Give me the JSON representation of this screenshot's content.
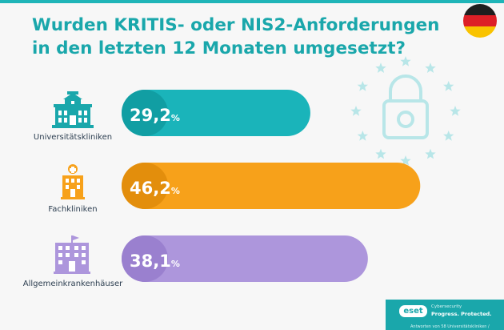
{
  "title_lines": [
    "Wurden KRITIS- oder NIS2-Anforderungen",
    "in den letzten 12 Monaten umgesetzt?"
  ],
  "chart_data": {
    "type": "bar",
    "orientation": "horizontal",
    "title": "Wurden KRITIS- oder NIS2-Anforderungen in den letzten 12 Monaten umgesetzt?",
    "categories": [
      "Universitätskliniken",
      "Fachkliniken",
      "Allgemeinkrankenhäuser"
    ],
    "values": [
      29.2,
      46.2,
      38.1
    ],
    "value_labels": [
      "29,2",
      "46,2",
      "38,1"
    ],
    "unit": "%",
    "colors": [
      "#1ab4ba",
      "#f7a11a",
      "#ad96dc"
    ],
    "label_circle_colors": [
      "#119ea3",
      "#e38e0c",
      "#9a80cf"
    ],
    "xlim": [
      0,
      50
    ],
    "grid": false,
    "legend": "none"
  },
  "flag": {
    "colors": [
      "#1e1e1e",
      "#dd1f26",
      "#f9c300"
    ]
  },
  "icons": [
    "university-building-icon",
    "hospital-building-icon",
    "general-hospital-building-icon",
    "eu-stars-padlock-icon",
    "germany-flag-icon"
  ],
  "footer": {
    "logo": "eset",
    "tagline_small": "Cybersecurity",
    "tagline": "Progress. Protected.",
    "note": "Antworten von 58 Universitätskliniken /"
  }
}
